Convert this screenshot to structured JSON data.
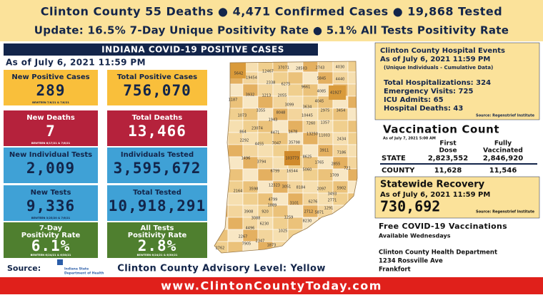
{
  "header": {
    "line1": "Clinton County  55 Deaths  ● 4,471 Confirmed Cases  ● 19,868 Tested",
    "line2": "Update: 16.5% 7-Day Unique Positivity Rate ● 5.1% All Tests Positivity Rate"
  },
  "section_title": "INDIANA COVID-19 POSITIVE CASES",
  "as_of": "As of July 6, 2021 11:59 PM",
  "tiles": [
    {
      "label": [
        "New Positive Cases"
      ],
      "value": "289",
      "note": "BEWTEEN 7/6/21 & 7/6/21"
    },
    {
      "label": [
        "Total Positive Cases"
      ],
      "value": "756,070"
    },
    {
      "label": [
        "New Deaths"
      ],
      "value": "7",
      "note": "BEWTEEN 6/17/21 & 7/6/21"
    },
    {
      "label": [
        "Total Deaths"
      ],
      "value": "13,466"
    },
    {
      "label": [
        "New Individual Tests"
      ],
      "value": "2,009"
    },
    {
      "label": [
        "Individuals Tested"
      ],
      "value": "3,595,672"
    },
    {
      "label": [
        "New Tests"
      ],
      "value": "9,336",
      "note": "BEWTEEN 3/25/20 & 7/6/21"
    },
    {
      "label": [
        "Total Tested"
      ],
      "value": "10,918,291"
    },
    {
      "label": [
        "7-Day",
        "Positivity Rate"
      ],
      "value": "6.1%",
      "note": "BEWTEEN 6/24/21 & 6/30/21"
    },
    {
      "label": [
        "All Tests",
        "Positivity Rate"
      ],
      "value": "2.8%",
      "note": "BEWTEEN 6/24/21 & 6/30/21"
    }
  ],
  "source_label": "Source:",
  "source_logo": [
    "Indiana State",
    "Department of Health"
  ],
  "advisory": "Clinton County Advisory Level: Yellow",
  "footer_url": "www.ClintonCountyToday.com",
  "map_counts": [
    "5642",
    "19454",
    "12467",
    "37071",
    "28503",
    "2743",
    "4030",
    "2338",
    "6275",
    "5845",
    "4440",
    "1187",
    "3932",
    "1213",
    "2055",
    "9661",
    "4085",
    "41927",
    "3099",
    "3634",
    "4045",
    "1073",
    "3355",
    "8048",
    "10445",
    "2975",
    "3454",
    "1943",
    "7260",
    "1357",
    "23074",
    "4471",
    "1678",
    "13250",
    "11003",
    "2434",
    "864",
    "2292",
    "4455",
    "7047",
    "35798",
    "3911",
    "7186",
    "1496",
    "3794",
    "103773",
    "8625",
    "1765",
    "2855",
    "721",
    "6799",
    "16544",
    "5060",
    "1709",
    "2164",
    "3598",
    "12323",
    "3051",
    "8184",
    "2097",
    "3493",
    "5902",
    "1889",
    "3101",
    "6276",
    "2771",
    "1291",
    "3908",
    "3088",
    "920",
    "4799",
    "5871",
    "2712",
    "6230",
    "1259",
    "8230",
    "4496",
    "2267",
    "1025",
    "7905",
    "2347",
    "2762",
    "1873"
  ],
  "hospital": {
    "title": "Clinton County Hospital Events",
    "as_of": "As of July 6, 2021 11:59 PM",
    "subtitle": "(Unique Individuals - Cumulative Data)",
    "lines": [
      "Total Hospitalizations: 324",
      "Emergency Visits: 725",
      "ICU Admits: 65",
      "Hospital Deaths: 43"
    ],
    "source": "Source: Regenstrief Institute"
  },
  "vaccination": {
    "title": "Vaccination Count",
    "as_of": "As of July 7, 2021 5:00 AM",
    "col1": [
      "First",
      "Dose"
    ],
    "col2": [
      "Fully",
      "Vaccinated"
    ],
    "rows": [
      [
        "STATE",
        "2,823,552",
        "2,846,920"
      ],
      [
        "COUNTY",
        "11,628",
        "11,546"
      ]
    ]
  },
  "recovery": {
    "title": "Statewide Recovery",
    "as_of": "As of July 6, 2021 11:59 PM",
    "value": "730,692",
    "source": "Source: Regenstrief Institute"
  },
  "vaccine_event": [
    "Free COVID-19 Vaccinations",
    "Available Wednesdays"
  ],
  "health_dept": [
    "Clinton County Health Department",
    "1234 Rossville Ave",
    "Frankfort"
  ]
}
